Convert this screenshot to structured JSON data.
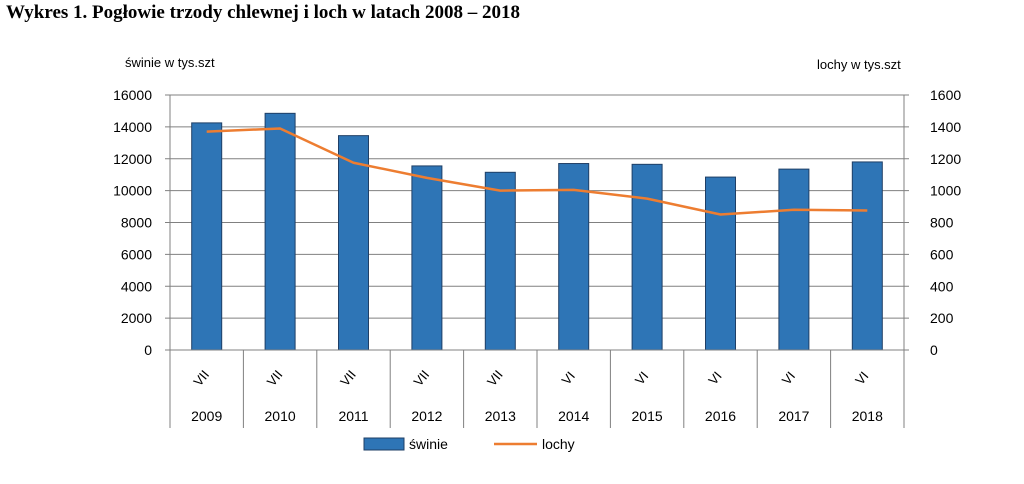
{
  "title": "Wykres 1. Pogłowie trzody chlewnej i loch w latach 2008 – 2018",
  "chart_data": {
    "type": "bar",
    "title": "Wykres 1. Pogłowie trzody chlewnej i loch w latach 2008 – 2018",
    "categories": [
      "2009",
      "2010",
      "2011",
      "2012",
      "2013",
      "2014",
      "2015",
      "2016",
      "2017",
      "2018"
    ],
    "months": [
      "VII",
      "VII",
      "VII",
      "VII",
      "VII",
      "VI",
      "VI",
      "VI",
      "VI",
      "VI"
    ],
    "ylabel_left": "świnie w tys.szt",
    "ylabel_right": "lochy w tys.szt",
    "ylim_left": [
      0,
      16000
    ],
    "ylim_right": [
      0,
      1600
    ],
    "yticks_left": [
      "16000",
      "14000",
      "12000",
      "10000",
      "8000",
      "6000",
      "4000",
      "2000",
      "0"
    ],
    "yticks_right": [
      "1600",
      "1400",
      "1200",
      "1000",
      "800",
      "600",
      "400",
      "200",
      "0"
    ],
    "grid": true,
    "legend_position": "bottom",
    "series": [
      {
        "name": "świnie",
        "type": "bar",
        "axis": "left",
        "color": "#2E75B6",
        "values": [
          14250,
          14850,
          13450,
          11550,
          11150,
          11700,
          11650,
          10850,
          11350,
          11800
        ]
      },
      {
        "name": "lochy",
        "type": "line",
        "axis": "right",
        "color": "#ED7D31",
        "values": [
          1370,
          1390,
          1175,
          1080,
          1000,
          1005,
          950,
          850,
          880,
          875
        ]
      }
    ]
  }
}
